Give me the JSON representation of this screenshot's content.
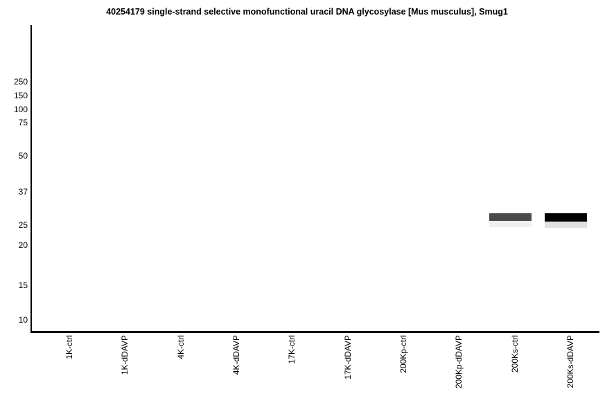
{
  "chart_data": {
    "type": "western-blot",
    "title": "40254179 single-strand selective monofunctional uracil DNA glycosylase [Mus musculus], Smug1",
    "protein": "Smug1",
    "organism": "Mus musculus",
    "y_axis": {
      "unit": "kDa",
      "markers": [
        250,
        150,
        100,
        75,
        50,
        37,
        25,
        20,
        15,
        10
      ],
      "scale": "molecular-weight ladder, log-like",
      "range": [
        10,
        250
      ]
    },
    "lanes": [
      "1K-ctrl",
      "1K-dDAVP",
      "4K-ctrl",
      "4K-dDAVP",
      "17K-ctrl",
      "17K-dDAVP",
      "200Kp-ctrl",
      "200Kp-dDAVP",
      "200Ks-ctrl",
      "200Ks-dDAVP"
    ],
    "x_tick_rotation": 90,
    "grid": false,
    "legend": "none",
    "bands": [
      {
        "lane": "200Ks-ctrl",
        "lane_index": 8,
        "kda_approx": 27,
        "intensity": "medium",
        "color": "#4a4a4a",
        "underlay_color": "#efefef"
      },
      {
        "lane": "200Ks-dDAVP",
        "lane_index": 9,
        "kda_approx": 27,
        "intensity": "strong",
        "color": "#000000",
        "underlay_color": "#e0e0e0"
      }
    ]
  },
  "colors": {
    "background": "#ffffff",
    "axis": "#000000",
    "text": "#000000"
  }
}
